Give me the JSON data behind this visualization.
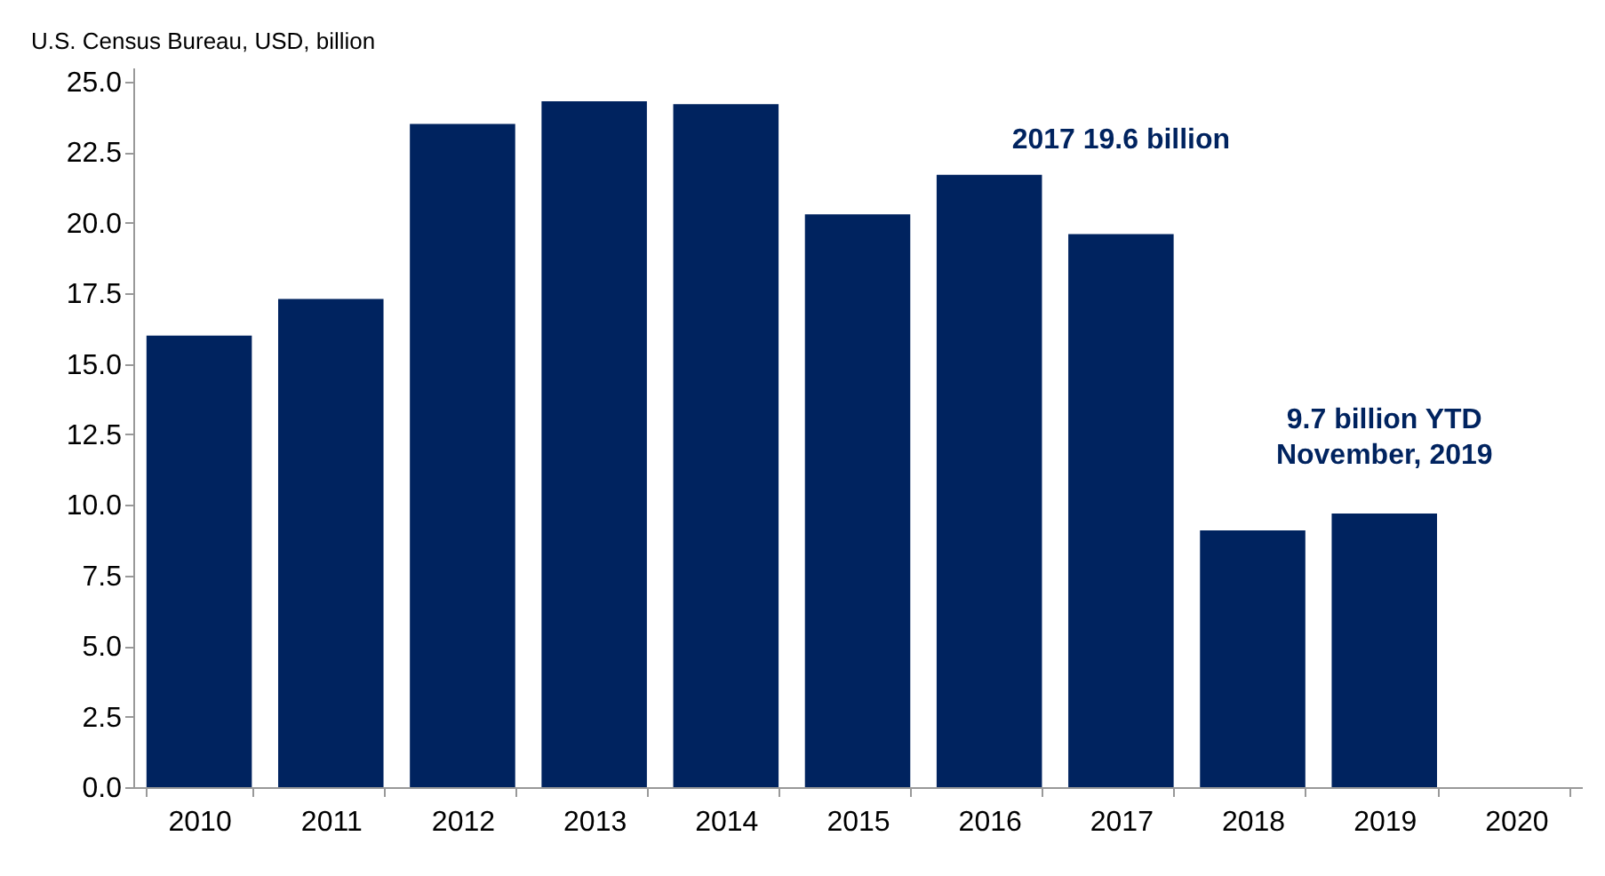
{
  "chart_data": {
    "type": "bar",
    "ylabel": "U.S. Census Bureau, USD, billion",
    "categories": [
      "2010",
      "2011",
      "2012",
      "2013",
      "2014",
      "2015",
      "2016",
      "2017",
      "2018",
      "2019",
      "2020"
    ],
    "values": [
      16.0,
      17.3,
      23.5,
      24.3,
      24.2,
      20.3,
      21.7,
      19.6,
      9.1,
      9.7,
      null
    ],
    "color": "#00235f",
    "ylim": [
      0,
      25.5
    ],
    "yticks": [
      {
        "value": 0,
        "label": "0.0"
      },
      {
        "value": 2.5,
        "label": "2.5"
      },
      {
        "value": 5,
        "label": "5.0"
      },
      {
        "value": 7.5,
        "label": "7.5"
      },
      {
        "value": 10,
        "label": "10.0"
      },
      {
        "value": 12.5,
        "label": "12.5"
      },
      {
        "value": 15,
        "label": "15.0"
      },
      {
        "value": 17.5,
        "label": "17.5"
      },
      {
        "value": 20,
        "label": "20.0"
      },
      {
        "value": 22.5,
        "label": "22.5"
      },
      {
        "value": 25,
        "label": "25.0"
      }
    ],
    "grid": false,
    "annotations": [
      {
        "text": "2017 19.6 billion",
        "x": "2017",
        "y": 19.6
      },
      {
        "text": "9.7 billion YTD\nNovember, 2019",
        "x": "2019",
        "y": 9.7
      }
    ]
  }
}
